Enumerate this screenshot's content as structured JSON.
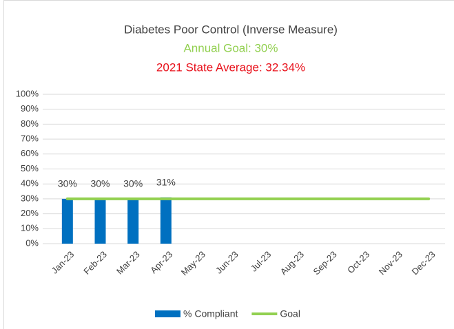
{
  "chart_data": {
    "type": "bar",
    "title": "Diabetes Poor Control (Inverse Measure)",
    "subtitle": "Annual Goal: 30%",
    "annotation": "2021 State Average: 32.34%",
    "categories": [
      "Jan-23",
      "Feb-23",
      "Mar-23",
      "Apr-23",
      "May-23",
      "Jun-23",
      "Jul-23",
      "Aug-23",
      "Sep-23",
      "Oct-23",
      "Nov-23",
      "Dec-23"
    ],
    "series": [
      {
        "name": "% Compliant",
        "type": "bar",
        "color": "#0070c0",
        "values": [
          30,
          30,
          30,
          31,
          null,
          null,
          null,
          null,
          null,
          null,
          null,
          null
        ],
        "value_labels": [
          "30%",
          "30%",
          "30%",
          "31%",
          null,
          null,
          null,
          null,
          null,
          null,
          null,
          null
        ]
      },
      {
        "name": "Goal",
        "type": "line",
        "color": "#92d050",
        "values": [
          30,
          30,
          30,
          30,
          30,
          30,
          30,
          30,
          30,
          30,
          30,
          30
        ]
      }
    ],
    "ylim": [
      0,
      100
    ],
    "yticks": [
      {
        "value": 0,
        "label": "0%"
      },
      {
        "value": 10,
        "label": "10%"
      },
      {
        "value": 20,
        "label": "20%"
      },
      {
        "value": 30,
        "label": "30%"
      },
      {
        "value": 40,
        "label": "40%"
      },
      {
        "value": 50,
        "label": "50%"
      },
      {
        "value": 60,
        "label": "60%"
      },
      {
        "value": 70,
        "label": "70%"
      },
      {
        "value": 80,
        "label": "80%"
      },
      {
        "value": 90,
        "label": "90%"
      },
      {
        "value": 100,
        "label": "100%"
      }
    ],
    "grid": true,
    "legend": "bottom"
  }
}
